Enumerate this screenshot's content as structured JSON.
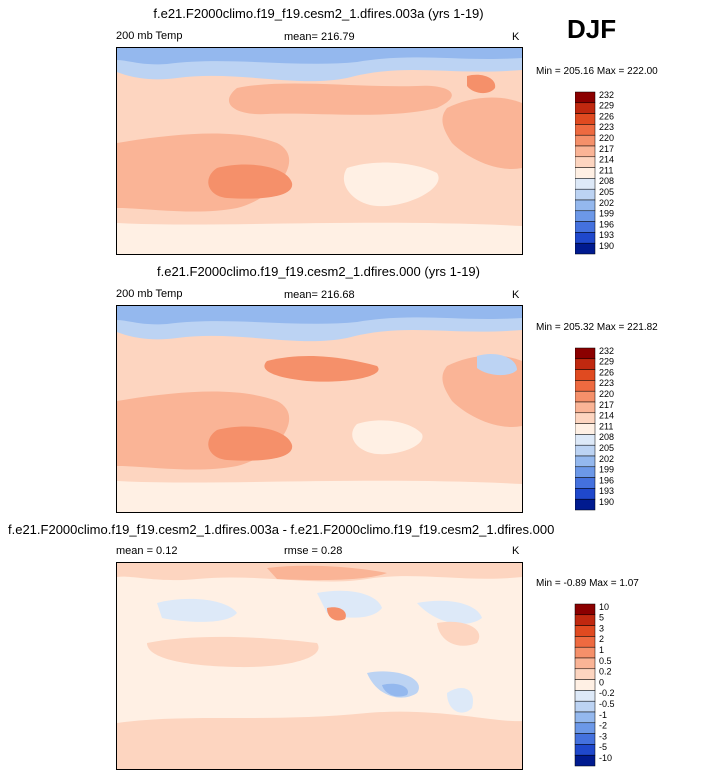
{
  "season": "DJF",
  "panels": [
    {
      "title": "f.e21.F2000climo.f19_f19.cesm2_1.dfires.003a (yrs 1-19)",
      "left": "200 mb Temp",
      "center": "mean= 216.79",
      "right": "K",
      "minmax": "Min = 205.16 Max = 222.00"
    },
    {
      "title": "f.e21.F2000climo.f19_f19.cesm2_1.dfires.000 (yrs 1-19)",
      "left": "200 mb Temp",
      "center": "mean= 216.68",
      "right": "K",
      "minmax": "Min = 205.32 Max = 221.82"
    },
    {
      "title": "f.e21.F2000climo.f19_f19.cesm2_1.dfires.003a - f.e21.F2000climo.f19_f19.cesm2_1.dfires.000",
      "left": "mean =  0.12",
      "center": "rmse =  0.28",
      "right": "K",
      "minmax": "Min = -0.89 Max =  1.07"
    }
  ],
  "chart_data": [
    {
      "type": "heatmap",
      "title": "f.e21.F2000climo.f19_f19.cesm2_1.dfires.003a (yrs 1-19)",
      "variable": "200 mb Temp",
      "units": "K",
      "mean": 216.79,
      "min": 205.16,
      "max": 222.0,
      "colorbar_levels": [
        "232",
        "229",
        "226",
        "223",
        "220",
        "217",
        "214",
        "211",
        "208",
        "205",
        "202",
        "199",
        "196",
        "193",
        "190"
      ],
      "colorbar_colors": [
        "#8b0000",
        "#c0280f",
        "#e04a20",
        "#ee6a40",
        "#f5906a",
        "#fab496",
        "#fdd5c0",
        "#fff0e4",
        "#dde9f8",
        "#bcd3f3",
        "#94b8ee",
        "#6c98e8",
        "#4471de",
        "#1f48cc",
        "#001a8f"
      ]
    },
    {
      "type": "heatmap",
      "title": "f.e21.F2000climo.f19_f19.cesm2_1.dfires.000 (yrs 1-19)",
      "variable": "200 mb Temp",
      "units": "K",
      "mean": 216.68,
      "min": 205.32,
      "max": 221.82,
      "colorbar_levels": [
        "232",
        "229",
        "226",
        "223",
        "220",
        "217",
        "214",
        "211",
        "208",
        "205",
        "202",
        "199",
        "196",
        "193",
        "190"
      ],
      "colorbar_colors": [
        "#8b0000",
        "#c0280f",
        "#e04a20",
        "#ee6a40",
        "#f5906a",
        "#fab496",
        "#fdd5c0",
        "#fff0e4",
        "#dde9f8",
        "#bcd3f3",
        "#94b8ee",
        "#6c98e8",
        "#4471de",
        "#1f48cc",
        "#001a8f"
      ]
    },
    {
      "type": "heatmap",
      "title": "f.e21.F2000climo.f19_f19.cesm2_1.dfires.003a - f.e21.F2000climo.f19_f19.cesm2_1.dfires.000",
      "units": "K",
      "mean": 0.12,
      "rmse": 0.28,
      "min": -0.89,
      "max": 1.07,
      "colorbar_levels": [
        "10",
        "5",
        "3",
        "2",
        "1",
        "0.5",
        "0.2",
        "0",
        "-0.2",
        "-0.5",
        "-1",
        "-2",
        "-3",
        "-5",
        "-10"
      ],
      "colorbar_colors": [
        "#8b0000",
        "#c0280f",
        "#e04a20",
        "#ee6a40",
        "#f5906a",
        "#fab496",
        "#fdd5c0",
        "#fff0e4",
        "#dde9f8",
        "#bcd3f3",
        "#94b8ee",
        "#6c98e8",
        "#4471de",
        "#1f48cc",
        "#001a8f"
      ]
    }
  ]
}
